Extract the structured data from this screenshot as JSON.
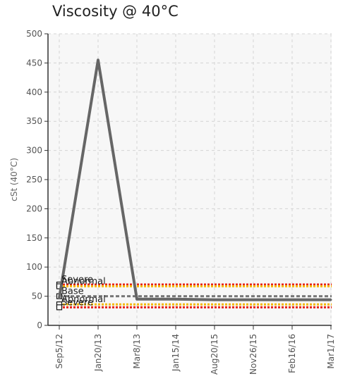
{
  "chart_data": {
    "type": "line",
    "title": "Viscosity @ 40°C",
    "ylabel": "cSt (40°C)",
    "xlabel": "",
    "ylim": [
      0,
      500
    ],
    "yticks": [
      0,
      50,
      100,
      150,
      200,
      250,
      300,
      350,
      400,
      450,
      500
    ],
    "categories": [
      "Sep5/12",
      "Jan20/13",
      "Mar8/13",
      "Jan15/14",
      "Aug20/15",
      "Nov26/15",
      "Feb16/16",
      "Mar1/17"
    ],
    "grid": true,
    "series": [
      {
        "values": [
          47,
          455,
          45,
          45,
          44,
          44,
          44,
          44
        ],
        "color": "#666666"
      }
    ],
    "reference_lines": [
      {
        "name": "Severe",
        "value": 70,
        "color": "#e8231a"
      },
      {
        "name": "Abnormal",
        "value": 67,
        "color": "#f5b800"
      },
      {
        "name": "Base",
        "value": 50,
        "color": "#777777"
      },
      {
        "name": "Abnormal",
        "value": 36,
        "color": "#f5b800"
      },
      {
        "name": "Severe",
        "value": 31,
        "color": "#e8231a"
      }
    ],
    "colors": {
      "plot_background": "#f7f7f7",
      "grid": "#d4d4d4",
      "axis": "#333333"
    }
  }
}
